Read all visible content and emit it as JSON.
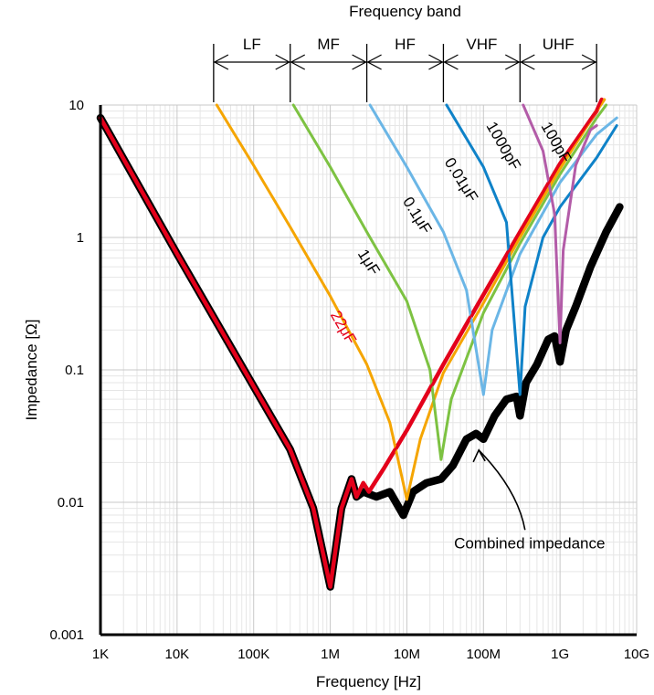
{
  "chart_data": {
    "type": "line",
    "xscale": "log",
    "yscale": "log",
    "xlim": [
      1000,
      10000000000
    ],
    "ylim": [
      0.001,
      10
    ],
    "xlabel": "Frequency [Hz]",
    "ylabel": "Impedance [Ω]",
    "x_ticks": [
      {
        "v": 1000,
        "label": "1K"
      },
      {
        "v": 10000,
        "label": "10K"
      },
      {
        "v": 100000,
        "label": "100K"
      },
      {
        "v": 1000000,
        "label": "1M"
      },
      {
        "v": 10000000,
        "label": "10M"
      },
      {
        "v": 100000000,
        "label": "100M"
      },
      {
        "v": 1000000000,
        "label": "1G"
      },
      {
        "v": 10000000000,
        "label": "10G"
      }
    ],
    "y_ticks": [
      {
        "v": 0.001,
        "label": "0.001"
      },
      {
        "v": 0.01,
        "label": "0.01"
      },
      {
        "v": 0.1,
        "label": "0.1"
      },
      {
        "v": 1,
        "label": "1"
      },
      {
        "v": 10,
        "label": "10"
      }
    ],
    "grid": true,
    "band_header": {
      "title": "Frequency band",
      "bands": [
        {
          "label": "LF",
          "from": 30000,
          "to": 300000
        },
        {
          "label": "MF",
          "from": 300000,
          "to": 3000000
        },
        {
          "label": "HF",
          "from": 3000000,
          "to": 30000000
        },
        {
          "label": "VHF",
          "from": 30000000,
          "to": 300000000
        },
        {
          "label": "UHF",
          "from": 300000000,
          "to": 3000000000
        }
      ]
    },
    "series": [
      {
        "name": "22μF",
        "color": "#e3001b",
        "width": 4.5,
        "points": [
          [
            1000,
            8
          ],
          [
            10000,
            0.75
          ],
          [
            100000,
            0.075
          ],
          [
            300000,
            0.025
          ],
          [
            600000,
            0.009
          ],
          [
            1000000,
            0.0023
          ],
          [
            1400000,
            0.009
          ],
          [
            1900000,
            0.015
          ],
          [
            2200000,
            0.011
          ],
          [
            2700000,
            0.014
          ],
          [
            3200000,
            0.012
          ],
          [
            5000000,
            0.018
          ],
          [
            10000000,
            0.035
          ],
          [
            30000000,
            0.11
          ],
          [
            100000000,
            0.37
          ],
          [
            300000000,
            1.1
          ],
          [
            1000000000,
            3.6
          ],
          [
            3000000000,
            9
          ],
          [
            3500000000,
            11
          ]
        ],
        "label_at": [
          1300000,
          0.2
        ],
        "label_angle": 60
      },
      {
        "name": "1μF",
        "color": "#f5a500",
        "width": 3,
        "points": [
          [
            33000,
            10
          ],
          [
            100000,
            3.5
          ],
          [
            300000,
            1.2
          ],
          [
            1000000,
            0.36
          ],
          [
            3000000,
            0.11
          ],
          [
            6000000,
            0.04
          ],
          [
            10000000,
            0.0105
          ],
          [
            15000000,
            0.03
          ],
          [
            30000000,
            0.095
          ],
          [
            100000000,
            0.32
          ],
          [
            300000000,
            1
          ],
          [
            1000000000,
            3.3
          ],
          [
            3000000000,
            9
          ],
          [
            3800000000,
            11
          ]
        ],
        "label_at": [
          2800000,
          0.62
        ],
        "label_angle": 58
      },
      {
        "name": "0.1μF",
        "color": "#7dc242",
        "width": 3,
        "points": [
          [
            330000,
            10
          ],
          [
            1000000,
            3.4
          ],
          [
            3000000,
            1.1
          ],
          [
            10000000,
            0.33
          ],
          [
            20000000,
            0.1
          ],
          [
            28000000,
            0.021
          ],
          [
            38000000,
            0.06
          ],
          [
            100000000,
            0.27
          ],
          [
            300000000,
            0.9
          ],
          [
            1000000000,
            3
          ],
          [
            3000000000,
            8
          ],
          [
            4000000000,
            10
          ]
        ],
        "label_at": [
          12000000,
          1.4
        ],
        "label_angle": 58
      },
      {
        "name": "0.01μF",
        "color": "#6bb6e6",
        "width": 3,
        "points": [
          [
            3300000,
            10
          ],
          [
            10000000,
            3.4
          ],
          [
            30000000,
            1.1
          ],
          [
            60000000,
            0.4
          ],
          [
            100000000,
            0.065
          ],
          [
            130000000,
            0.2
          ],
          [
            300000000,
            0.75
          ],
          [
            1000000000,
            2.6
          ],
          [
            3000000000,
            6
          ],
          [
            5500000000,
            8
          ]
        ],
        "label_at": [
          45000000,
          2.6
        ],
        "label_angle": 58
      },
      {
        "name": "1000pF",
        "color": "#0f82c8",
        "width": 3,
        "points": [
          [
            33000000,
            10
          ],
          [
            100000000,
            3.4
          ],
          [
            200000000,
            1.3
          ],
          [
            300000000,
            0.065
          ],
          [
            350000000,
            0.3
          ],
          [
            600000000,
            1
          ],
          [
            1000000000,
            1.7
          ],
          [
            3000000000,
            4
          ],
          [
            5500000000,
            7
          ]
        ],
        "label_at": [
          160000000,
          4.7
        ],
        "label_angle": 60
      },
      {
        "name": "100pF",
        "color": "#b35ca8",
        "width": 3,
        "points": [
          [
            330000000,
            10
          ],
          [
            600000000,
            4.5
          ],
          [
            850000000,
            1.5
          ],
          [
            1000000000,
            0.16
          ],
          [
            1100000000,
            0.8
          ],
          [
            1600000000,
            3.5
          ],
          [
            2500000000,
            6.5
          ],
          [
            3000000000,
            7
          ]
        ],
        "label_at": [
          780000000,
          5
        ],
        "label_angle": 60
      },
      {
        "name": "Combined impedance",
        "color": "#000000",
        "width": 8.5,
        "points": [
          [
            1000,
            8
          ],
          [
            10000,
            0.75
          ],
          [
            100000,
            0.075
          ],
          [
            300000,
            0.025
          ],
          [
            600000,
            0.009
          ],
          [
            1000000,
            0.0023
          ],
          [
            1400000,
            0.009
          ],
          [
            1900000,
            0.015
          ],
          [
            2200000,
            0.011
          ],
          [
            2700000,
            0.012
          ],
          [
            4000000,
            0.011
          ],
          [
            6000000,
            0.012
          ],
          [
            9000000,
            0.008
          ],
          [
            12000000,
            0.012
          ],
          [
            18000000,
            0.014
          ],
          [
            28000000,
            0.015
          ],
          [
            40000000,
            0.019
          ],
          [
            60000000,
            0.03
          ],
          [
            80000000,
            0.033
          ],
          [
            100000000,
            0.03
          ],
          [
            140000000,
            0.045
          ],
          [
            200000000,
            0.06
          ],
          [
            270000000,
            0.063
          ],
          [
            300000000,
            0.045
          ],
          [
            360000000,
            0.08
          ],
          [
            500000000,
            0.11
          ],
          [
            700000000,
            0.17
          ],
          [
            850000000,
            0.18
          ],
          [
            1000000000,
            0.115
          ],
          [
            1200000000,
            0.2
          ],
          [
            1600000000,
            0.3
          ],
          [
            2500000000,
            0.6
          ],
          [
            4000000000,
            1.1
          ],
          [
            6000000000,
            1.7
          ]
        ]
      }
    ],
    "annotation": {
      "text": "Combined impedance",
      "text_at": [
        400000000,
        0.0045
      ],
      "arrow_to": [
        80000000,
        0.03
      ]
    }
  }
}
